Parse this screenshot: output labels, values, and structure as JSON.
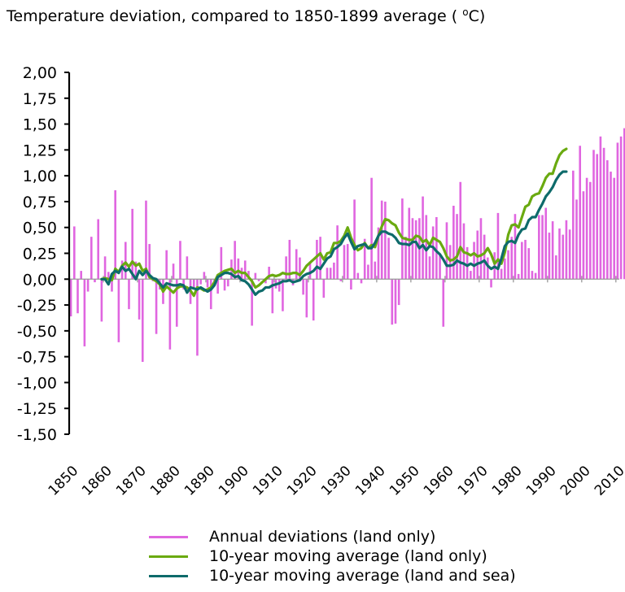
{
  "chart_data": {
    "type": "bar+line",
    "title_main": "Temperature deviation, compared to 1850-1899 average ( ",
    "title_unit_sup": "o",
    "title_unit_tail": "C)",
    "xlabel": "",
    "ylabel": "",
    "ylim": [
      -1.5,
      2.0
    ],
    "xlim": [
      1850,
      2010
    ],
    "grid": false,
    "legend_position": "bottom",
    "y_ticks": [
      "2,00",
      "1,75",
      "1,50",
      "1,25",
      "1,00",
      "0,75",
      "0,50",
      "0,25",
      "0,00",
      "-0,25",
      "-0,50",
      "-0,75",
      "-1,00",
      "-1,25",
      "-1,50"
    ],
    "y_tick_values": [
      2.0,
      1.75,
      1.5,
      1.25,
      1.0,
      0.75,
      0.5,
      0.25,
      0.0,
      -0.25,
      -0.5,
      -0.75,
      -1.0,
      -1.25,
      -1.5
    ],
    "x_ticks": [
      "1850",
      "1860",
      "1870",
      "1880",
      "1890",
      "1900",
      "1910",
      "1920",
      "1930",
      "1940",
      "1950",
      "1960",
      "1970",
      "1980",
      "1990",
      "2000",
      "2010"
    ],
    "colors": {
      "annual": "#e066e0",
      "land_avg": "#6aaa10",
      "land_sea_avg": "#0e6b6b",
      "axis": "#000000",
      "zero_line": "#999999"
    },
    "series": [
      {
        "name": "Annual deviations (land only)",
        "kind": "bar",
        "color": "#e066e0",
        "start_year": 1850,
        "values": [
          -0.36,
          0.51,
          -0.33,
          0.08,
          -0.65,
          -0.12,
          0.41,
          -0.03,
          0.58,
          -0.41,
          0.22,
          0.07,
          -0.12,
          0.86,
          -0.61,
          0.18,
          0.36,
          -0.29,
          0.68,
          0.17,
          -0.39,
          -0.8,
          0.76,
          0.34,
          -0.02,
          -0.53,
          -0.1,
          -0.24,
          0.28,
          -0.68,
          0.15,
          -0.46,
          0.37,
          -0.1,
          0.22,
          -0.24,
          -0.08,
          -0.74,
          -0.05,
          0.07,
          -0.08,
          -0.29,
          -0.05,
          -0.14,
          0.31,
          -0.11,
          -0.07,
          0.19,
          0.37,
          0.2,
          0.11,
          0.18,
          0.08,
          -0.45,
          0.06,
          -0.02,
          0.0,
          -0.04,
          0.12,
          -0.33,
          -0.09,
          -0.12,
          -0.31,
          0.22,
          0.38,
          -0.06,
          0.29,
          0.21,
          -0.15,
          -0.37,
          0.16,
          -0.4,
          0.38,
          0.41,
          -0.18,
          0.11,
          0.11,
          0.16,
          0.52,
          -0.02,
          0.33,
          0.34,
          -0.1,
          0.77,
          0.06,
          -0.04,
          0.39,
          0.14,
          0.98,
          0.17,
          0.5,
          0.76,
          0.75,
          0.4,
          -0.44,
          -0.43,
          -0.25,
          0.78,
          0.41,
          0.69,
          0.59,
          0.57,
          0.59,
          0.8,
          0.62,
          0.22,
          0.51,
          0.6,
          0.25,
          -0.46,
          0.55,
          0.33,
          0.71,
          0.63,
          0.94,
          0.54,
          0.31,
          0.08,
          0.36,
          0.47,
          0.59,
          0.43,
          0.21,
          -0.08,
          0.26,
          0.64,
          0.1,
          0.2,
          0.28,
          0.41,
          0.63,
          0.05,
          0.36,
          0.38,
          0.3,
          0.08,
          0.06,
          0.62,
          0.62,
          0.69,
          0.45,
          0.56,
          0.23,
          0.49,
          0.43,
          0.57,
          0.48,
          1.05,
          0.77,
          1.29,
          0.85,
          0.98,
          0.94,
          1.25,
          1.21,
          1.38,
          1.27,
          1.15,
          1.04,
          0.98,
          1.32,
          1.38,
          1.46,
          1.41,
          1.28,
          1.31
        ],
        "notes": "Approximate annual values read from bar heights; recent bars (~1987-2010) mostly 0.6-1.45"
      },
      {
        "name": "10-year moving average (land only)",
        "kind": "line",
        "color": "#6aaa10",
        "start_year": 1859,
        "values": [
          0.0,
          0.01,
          0.0,
          -0.01,
          0.1,
          0.07,
          0.13,
          0.16,
          0.12,
          0.17,
          0.13,
          0.15,
          0.08,
          0.1,
          0.02,
          0.0,
          -0.02,
          -0.05,
          -0.12,
          -0.07,
          -0.1,
          -0.13,
          -0.09,
          -0.07,
          -0.07,
          -0.08,
          -0.11,
          -0.16,
          -0.08,
          -0.09,
          -0.11,
          -0.1,
          -0.08,
          -0.03,
          0.04,
          0.06,
          0.08,
          0.09,
          0.1,
          0.06,
          0.08,
          0.06,
          0.06,
          0.02,
          -0.02,
          -0.08,
          -0.06,
          -0.03,
          0.0,
          0.03,
          0.04,
          0.03,
          0.04,
          0.06,
          0.05,
          0.05,
          0.06,
          0.06,
          0.04,
          0.08,
          0.13,
          0.16,
          0.19,
          0.22,
          0.25,
          0.19,
          0.25,
          0.26,
          0.35,
          0.35,
          0.37,
          0.42,
          0.5,
          0.4,
          0.33,
          0.28,
          0.3,
          0.35,
          0.3,
          0.33,
          0.31,
          0.42,
          0.51,
          0.58,
          0.57,
          0.54,
          0.52,
          0.45,
          0.4,
          0.39,
          0.38,
          0.38,
          0.42,
          0.41,
          0.36,
          0.38,
          0.33,
          0.4,
          0.38,
          0.36,
          0.3,
          0.22,
          0.18,
          0.19,
          0.22,
          0.31,
          0.26,
          0.25,
          0.23,
          0.25,
          0.22,
          0.23,
          0.25,
          0.3,
          0.24,
          0.15,
          0.19,
          0.15,
          0.26,
          0.43,
          0.52,
          0.53,
          0.5,
          0.6,
          0.7,
          0.72,
          0.8,
          0.82,
          0.83,
          0.9,
          0.98,
          1.02,
          1.02,
          1.12,
          1.2,
          1.24,
          1.26
        ],
        "notes": "Approximate values read from line positions"
      },
      {
        "name": "10-year moving average (land and sea)",
        "kind": "line",
        "color": "#0e6b6b",
        "start_year": 1859,
        "values": [
          0.0,
          0.0,
          -0.05,
          0.05,
          0.08,
          0.06,
          0.12,
          0.08,
          0.1,
          0.05,
          0.0,
          0.08,
          0.04,
          0.08,
          0.04,
          0.01,
          0.0,
          -0.04,
          -0.08,
          -0.04,
          -0.05,
          -0.06,
          -0.06,
          -0.05,
          -0.06,
          -0.13,
          -0.08,
          -0.09,
          -0.1,
          -0.08,
          -0.1,
          -0.12,
          -0.1,
          -0.06,
          0.02,
          0.04,
          0.06,
          0.06,
          0.05,
          0.02,
          0.03,
          -0.01,
          -0.02,
          -0.05,
          -0.1,
          -0.15,
          -0.12,
          -0.11,
          -0.08,
          -0.08,
          -0.06,
          -0.05,
          -0.04,
          -0.02,
          -0.02,
          -0.01,
          -0.03,
          -0.02,
          -0.01,
          0.03,
          0.05,
          0.06,
          0.08,
          0.12,
          0.1,
          0.15,
          0.2,
          0.22,
          0.29,
          0.31,
          0.34,
          0.4,
          0.44,
          0.36,
          0.29,
          0.32,
          0.33,
          0.34,
          0.3,
          0.3,
          0.35,
          0.42,
          0.46,
          0.46,
          0.44,
          0.43,
          0.4,
          0.35,
          0.34,
          0.34,
          0.33,
          0.36,
          0.36,
          0.3,
          0.33,
          0.28,
          0.32,
          0.31,
          0.27,
          0.24,
          0.19,
          0.13,
          0.13,
          0.14,
          0.18,
          0.16,
          0.15,
          0.13,
          0.15,
          0.13,
          0.15,
          0.16,
          0.18,
          0.13,
          0.1,
          0.12,
          0.1,
          0.2,
          0.32,
          0.36,
          0.37,
          0.35,
          0.43,
          0.48,
          0.49,
          0.57,
          0.6,
          0.6,
          0.67,
          0.73,
          0.8,
          0.84,
          0.89,
          0.96,
          1.01,
          1.04,
          1.04
        ],
        "notes": "Approximate values read from line positions"
      }
    ]
  },
  "legend": {
    "items": [
      {
        "label": "Annual deviations (land only)",
        "color": "#e066e0"
      },
      {
        "label": "10-year moving average (land only)",
        "color": "#6aaa10"
      },
      {
        "label": "10-year moving average (land and sea)",
        "color": "#0e6b6b"
      }
    ]
  }
}
